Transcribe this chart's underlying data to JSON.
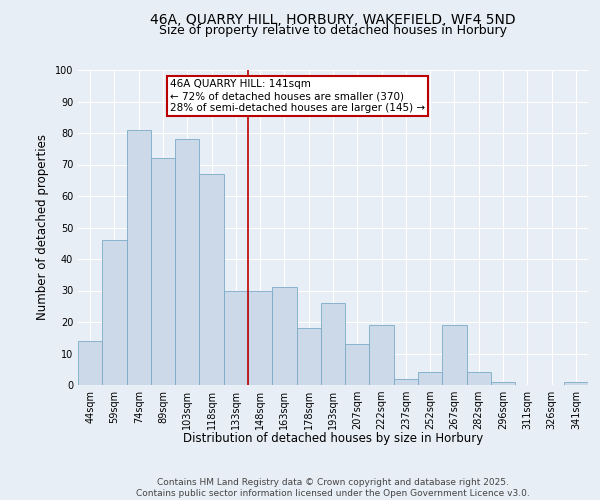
{
  "title_line1": "46A, QUARRY HILL, HORBURY, WAKEFIELD, WF4 5ND",
  "title_line2": "Size of property relative to detached houses in Horbury",
  "xlabel": "Distribution of detached houses by size in Horbury",
  "ylabel": "Number of detached properties",
  "categories": [
    "44sqm",
    "59sqm",
    "74sqm",
    "89sqm",
    "103sqm",
    "118sqm",
    "133sqm",
    "148sqm",
    "163sqm",
    "178sqm",
    "193sqm",
    "207sqm",
    "222sqm",
    "237sqm",
    "252sqm",
    "267sqm",
    "282sqm",
    "296sqm",
    "311sqm",
    "326sqm",
    "341sqm"
  ],
  "values": [
    14,
    46,
    81,
    72,
    78,
    67,
    30,
    30,
    31,
    18,
    26,
    13,
    19,
    2,
    4,
    19,
    4,
    1,
    0,
    0,
    1
  ],
  "bar_color": "#ccd9e8",
  "bar_edge_color": "#7baac8",
  "background_color": "#e8eef5",
  "grid_color": "#ffffff",
  "reference_line_index": 7,
  "reference_line_color": "#bb0000",
  "annotation_title": "46A QUARRY HILL: 141sqm",
  "annotation_line1": "← 72% of detached houses are smaller (370)",
  "annotation_line2": "28% of semi-detached houses are larger (145) →",
  "annotation_box_color": "#bb0000",
  "annotation_text_color": "#000000",
  "annotation_bg_color": "#ffffff",
  "ylim": [
    0,
    100
  ],
  "yticks": [
    0,
    10,
    20,
    30,
    40,
    50,
    60,
    70,
    80,
    90,
    100
  ],
  "footer_line1": "Contains HM Land Registry data © Crown copyright and database right 2025.",
  "footer_line2": "Contains public sector information licensed under the Open Government Licence v3.0.",
  "title_fontsize": 10,
  "subtitle_fontsize": 9,
  "axis_label_fontsize": 8.5,
  "tick_fontsize": 7,
  "footer_fontsize": 6.5,
  "annotation_fontsize": 7.5
}
